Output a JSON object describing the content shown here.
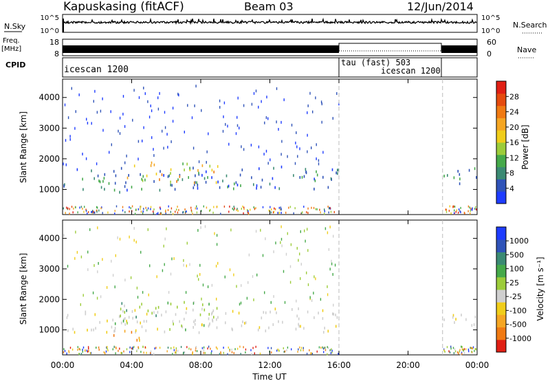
{
  "header": {
    "station": "Kapuskasing (fitACF)",
    "beam": "Beam 03",
    "date": "12/Jun/2014"
  },
  "strips": {
    "nsky_label": "N.Sky",
    "nsky_ticks": [
      "10^5",
      "10^0"
    ],
    "nsearch_label": "N.Search",
    "nsearch_ticks": [
      "10^5",
      "10^0"
    ],
    "freq_label_1": "Freq.",
    "freq_label_2": "[MHz]",
    "freq_ticks": [
      "18",
      "8"
    ],
    "nave_label": "Nave",
    "nave_ticks": [
      "60",
      "0"
    ],
    "cpid_label": "CPID",
    "cpid_segments": [
      {
        "label": "icescan 1200",
        "start_h": 0,
        "end_h": 16
      },
      {
        "label": "tau (fast) 503",
        "start_h": 16,
        "end_h": 22
      },
      {
        "label": "icescan 1200",
        "start_h": 16,
        "end_h": 22
      }
    ]
  },
  "chart_data": [
    {
      "type": "heatmap",
      "title": "",
      "xlabel": "",
      "ylabel": "Slant Range [km]",
      "xlim": [
        0,
        24
      ],
      "ylim": [
        180,
        4600
      ],
      "yticks": [
        1000,
        2000,
        3000,
        4000
      ],
      "colorbar_label": "Power [dB]",
      "colorbar_ticks": [
        "4",
        "8",
        "12",
        "16",
        "20",
        "24",
        "28"
      ],
      "colorbar_colors": [
        "#1e3cff",
        "#2f53b8",
        "#3b8a73",
        "#45a94a",
        "#9ccc3a",
        "#f0cd1a",
        "#f5a623",
        "#f07a13",
        "#e54b0e",
        "#e01f14"
      ],
      "data_regions": [
        {
          "t_start": 0.0,
          "t_end": 9.5,
          "r_low": 900,
          "r_high": 1700,
          "level": "4-16 dB"
        },
        {
          "t_start": 3.5,
          "t_end": 9.0,
          "r_low": 1200,
          "r_high": 1900,
          "level": "12-24 dB"
        },
        {
          "t_start": 9.5,
          "t_end": 16.0,
          "r_low": 1000,
          "r_high": 1800,
          "level": "4-12 dB"
        },
        {
          "t_start": 22.0,
          "t_end": 24.0,
          "r_low": 1100,
          "r_high": 1700,
          "level": "4-12 dB"
        }
      ]
    },
    {
      "type": "heatmap",
      "title": "",
      "xlabel": "Time UT",
      "ylabel": "Slant Range [km]",
      "xlim": [
        0,
        24
      ],
      "ylim": [
        180,
        4600
      ],
      "xticks": [
        "00:00",
        "04:00",
        "08:00",
        "12:00",
        "16:00",
        "20:00",
        "00:00"
      ],
      "yticks": [
        1000,
        2000,
        3000,
        4000
      ],
      "colorbar_label": "Velocity [m s⁻¹]",
      "colorbar_ticks": [
        "-1000",
        "-500",
        "-100",
        "-25",
        "25",
        "100",
        "500",
        "1000"
      ],
      "colorbar_colors": [
        "#e01f14",
        "#f07a13",
        "#f5a623",
        "#f0cd1a",
        "#cfcfcf",
        "#9ccc3a",
        "#45a94a",
        "#3b8a73",
        "#2f53b8",
        "#1e3cff"
      ],
      "data_regions": [
        {
          "t_start": 0.0,
          "t_end": 16.0,
          "r_low": 900,
          "r_high": 1700,
          "level": "-25 to 25 m/s"
        },
        {
          "t_start": 3.0,
          "t_end": 9.0,
          "r_low": 1000,
          "r_high": 1900,
          "level": "25 to 500 m/s"
        },
        {
          "t_start": 2.5,
          "t_end": 4.5,
          "r_low": 600,
          "r_high": 1000,
          "level": "-100 to -500 m/s"
        },
        {
          "t_start": 22.0,
          "t_end": 24.0,
          "r_low": 1100,
          "r_high": 1700,
          "level": "-25 to 25 m/s"
        }
      ]
    }
  ]
}
